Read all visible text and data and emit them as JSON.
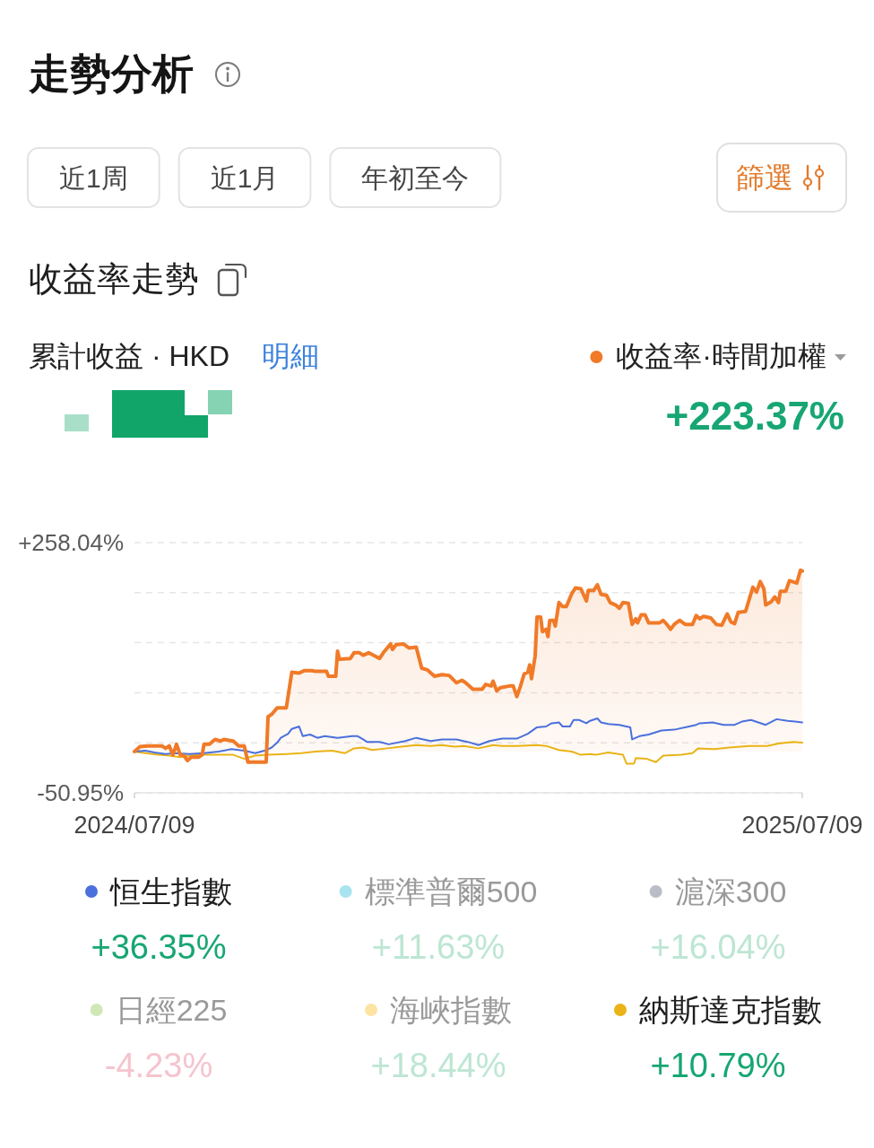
{
  "chart_data": {
    "type": "line",
    "title": "走勢分析",
    "subtitle": "收益率走勢",
    "annotations": [
      "近1周",
      "近1月",
      "年初至今",
      "篩選",
      "累計收益 · HKD",
      "明細",
      "+223.37%",
      "+36.35%",
      "+11.63%",
      "+16.04%",
      "-4.23%",
      "+18.44%",
      "+10.79%"
    ],
    "xlim": [
      "2024-07-09",
      "2025-07-09"
    ],
    "xticks": [
      {
        "value": "2024-07-09",
        "label": "2024/07/09"
      },
      {
        "value": "2025-07-09",
        "label": "2025/07/09"
      }
    ],
    "ylim": [
      -50.95,
      258.04
    ],
    "yticks": [
      {
        "value": 258.04,
        "label": "+258.04%"
      },
      {
        "value": 196.24,
        "label": null
      },
      {
        "value": 134.44,
        "label": null
      },
      {
        "value": 72.65,
        "label": null
      },
      {
        "value": 10.85,
        "label": null
      },
      {
        "value": -50.95,
        "label": "-50.95%"
      }
    ],
    "grid": "y",
    "legend": "bottom",
    "series": [
      {
        "name": "收益率·時間加權",
        "type": "area",
        "color": "#f07a28",
        "x": [
          "2024-07-09",
          "2024-07-12",
          "2024-07-16",
          "2024-07-20",
          "2024-07-24",
          "2024-07-26",
          "2024-07-28",
          "2024-07-30",
          "2024-08-01",
          "2024-08-03",
          "2024-08-05",
          "2024-08-07",
          "2024-08-09",
          "2024-08-13",
          "2024-08-15",
          "2024-08-16",
          "2024-08-19",
          "2024-08-22",
          "2024-08-25",
          "2024-08-27",
          "2024-09-01",
          "2024-09-04",
          "2024-09-07",
          "2024-09-09",
          "2024-09-19",
          "2024-09-20",
          "2024-09-22",
          "2024-09-25",
          "2024-09-30",
          "2024-10-03",
          "2024-10-07",
          "2024-10-10",
          "2024-10-14",
          "2024-10-16",
          "2024-10-22",
          "2024-10-23",
          "2024-10-27",
          "2024-10-28",
          "2024-10-29",
          "2024-11-04",
          "2024-11-06",
          "2024-11-09",
          "2024-11-11",
          "2024-11-14",
          "2024-11-20",
          "2024-11-22",
          "2024-11-26",
          "2024-11-27",
          "2024-11-29",
          "2024-12-03",
          "2024-12-06",
          "2024-12-10",
          "2024-12-13",
          "2024-12-16",
          "2024-12-20",
          "2024-12-24",
          "2024-12-28",
          "2025-01-01",
          "2025-01-04",
          "2025-01-06",
          "2025-01-10",
          "2025-01-15",
          "2025-01-17",
          "2025-01-20",
          "2025-01-21",
          "2025-01-23",
          "2025-01-25",
          "2025-01-30",
          "2025-02-01",
          "2025-02-03",
          "2025-02-05",
          "2025-02-07",
          "2025-02-09",
          "2025-02-10",
          "2025-02-11",
          "2025-02-13",
          "2025-02-14",
          "2025-02-16",
          "2025-02-17",
          "2025-02-19",
          "2025-02-20",
          "2025-02-21",
          "2025-02-23",
          "2025-02-24",
          "2025-02-26",
          "2025-02-28",
          "2025-03-02",
          "2025-03-05",
          "2025-03-07",
          "2025-03-10",
          "2025-03-13",
          "2025-03-14",
          "2025-03-17",
          "2025-03-19",
          "2025-03-21",
          "2025-03-24",
          "2025-03-26",
          "2025-03-29",
          "2025-03-31",
          "2025-04-02",
          "2025-04-05",
          "2025-04-07",
          "2025-04-09",
          "2025-04-10",
          "2025-04-12",
          "2025-04-14",
          "2025-04-16",
          "2025-04-22",
          "2025-04-24",
          "2025-04-26",
          "2025-04-28",
          "2025-04-30",
          "2025-05-03",
          "2025-05-06",
          "2025-05-10",
          "2025-05-12",
          "2025-05-14",
          "2025-05-16",
          "2025-05-20",
          "2025-05-23",
          "2025-05-26",
          "2025-05-29",
          "2025-05-31",
          "2025-06-02",
          "2025-06-04",
          "2025-06-08",
          "2025-06-12",
          "2025-06-14",
          "2025-06-16",
          "2025-06-18",
          "2025-06-19",
          "2025-06-22",
          "2025-06-24",
          "2025-06-26",
          "2025-06-27",
          "2025-06-30",
          "2025-07-02",
          "2025-07-06",
          "2025-07-08",
          "2025-07-09"
        ],
        "values": [
          0,
          6,
          7,
          7,
          7,
          4,
          7,
          -4,
          9,
          -4,
          -5,
          -11,
          -7,
          -7,
          -4,
          9,
          9,
          15,
          13,
          15,
          13,
          7,
          7,
          -13,
          -13,
          43,
          46,
          54,
          54,
          98,
          97,
          100,
          100,
          99,
          99,
          93,
          93,
          124,
          114,
          115,
          122,
          122,
          119,
          122,
          115,
          122,
          133,
          126,
          132,
          133,
          128,
          129,
          103,
          101,
          93,
          95,
          94,
          85,
          88,
          85,
          77,
          77,
          83,
          81,
          87,
          75,
          79,
          81,
          81,
          68,
          81,
          96,
          98,
          107,
          90,
          118,
          166,
          166,
          148,
          151,
          142,
          162,
          162,
          155,
          184,
          179,
          179,
          195,
          202,
          201,
          186,
          199,
          199,
          206,
          194,
          193,
          184,
          181,
          177,
          184,
          183,
          157,
          164,
          159,
          169,
          169,
          159,
          159,
          162,
          157,
          151,
          157,
          162,
          157,
          157,
          168,
          164,
          167,
          165,
          157,
          156,
          170,
          160,
          158,
          172,
          173,
          203,
          197,
          210,
          201,
          181,
          185,
          191,
          184,
          198,
          198,
          211,
          208,
          224,
          223
        ]
      },
      {
        "name": "恒生指數",
        "color": "#4b70dd",
        "x": [
          "2024-07-09",
          "2024-07-15",
          "2024-07-20",
          "2024-07-26",
          "2024-07-31",
          "2024-08-08",
          "2024-08-16",
          "2024-08-24",
          "2024-08-31",
          "2024-09-07",
          "2024-09-13",
          "2024-09-18",
          "2024-09-22",
          "2024-09-25",
          "2024-09-27",
          "2024-10-01",
          "2024-10-03",
          "2024-10-07",
          "2024-10-09",
          "2024-10-13",
          "2024-10-17",
          "2024-10-21",
          "2024-10-28",
          "2024-11-05",
          "2024-11-08",
          "2024-11-11",
          "2024-11-13",
          "2024-11-20",
          "2024-11-25",
          "2024-12-04",
          "2024-12-10",
          "2024-12-18",
          "2024-12-24",
          "2025-01-01",
          "2025-01-07",
          "2025-01-13",
          "2025-01-19",
          "2025-01-26",
          "2025-02-03",
          "2025-02-09",
          "2025-02-14",
          "2025-02-19",
          "2025-02-22",
          "2025-02-26",
          "2025-02-28",
          "2025-03-04",
          "2025-03-06",
          "2025-03-09",
          "2025-03-13",
          "2025-03-15",
          "2025-03-19",
          "2025-03-21",
          "2025-03-25",
          "2025-03-31",
          "2025-04-06",
          "2025-04-07",
          "2025-04-11",
          "2025-04-16",
          "2025-04-23",
          "2025-04-30",
          "2025-05-06",
          "2025-05-12",
          "2025-05-14",
          "2025-05-21",
          "2025-05-27",
          "2025-06-02",
          "2025-06-06",
          "2025-06-11",
          "2025-06-15",
          "2025-06-19",
          "2025-06-25",
          "2025-07-01",
          "2025-07-05",
          "2025-07-09"
        ],
        "values": [
          0,
          1,
          -1,
          -3,
          -2,
          -3,
          -2,
          0,
          3,
          1,
          -2,
          1,
          5,
          11,
          17,
          22,
          28,
          31,
          19,
          21,
          17,
          19,
          17,
          19,
          19,
          15,
          12,
          12,
          9,
          13,
          17,
          13,
          15,
          15,
          12,
          8,
          13,
          16,
          16,
          22,
          30,
          31,
          35,
          36,
          31,
          31,
          39,
          39,
          35,
          38,
          41,
          36,
          34,
          33,
          30,
          15,
          19,
          21,
          26,
          27,
          30,
          33,
          35,
          36,
          33,
          33,
          37,
          39,
          36,
          33,
          40,
          38,
          37,
          36
        ]
      },
      {
        "name": "標準普爾500",
        "color": "#a8e4ef"
      },
      {
        "name": "滬深300",
        "color": "#babdc6"
      },
      {
        "name": "日經225",
        "color": "#d0e8b6"
      },
      {
        "name": "海峽指數",
        "color": "#fde4a3"
      },
      {
        "name": "納斯達克指數",
        "color": "#eab316",
        "x": [
          "2024-07-09",
          "2024-07-15",
          "2024-07-22",
          "2024-07-28",
          "2024-08-03",
          "2024-08-08",
          "2024-08-16",
          "2024-08-24",
          "2024-09-01",
          "2024-09-07",
          "2024-09-13",
          "2024-09-20",
          "2024-09-30",
          "2024-10-08",
          "2024-10-16",
          "2024-10-25",
          "2024-11-01",
          "2024-11-06",
          "2024-11-11",
          "2024-11-16",
          "2024-11-24",
          "2024-12-02",
          "2024-12-10",
          "2024-12-18",
          "2024-12-24",
          "2024-12-31",
          "2025-01-05",
          "2025-01-13",
          "2025-01-21",
          "2025-01-26",
          "2025-02-03",
          "2025-02-14",
          "2025-02-19",
          "2025-02-26",
          "2025-03-05",
          "2025-03-10",
          "2025-03-15",
          "2025-03-18",
          "2025-03-25",
          "2025-04-02",
          "2025-04-04",
          "2025-04-08",
          "2025-04-09",
          "2025-04-15",
          "2025-04-20",
          "2025-04-24",
          "2025-05-04",
          "2025-05-10",
          "2025-05-13",
          "2025-05-22",
          "2025-05-30",
          "2025-06-10",
          "2025-06-20",
          "2025-06-26",
          "2025-07-04",
          "2025-07-09"
        ],
        "values": [
          0,
          -2,
          -4,
          -5,
          -7,
          -5,
          -4,
          -4,
          -4,
          -9,
          -5,
          -4,
          -3,
          -2,
          0,
          1,
          -2,
          4,
          5,
          2,
          4,
          6,
          8,
          7,
          8,
          6,
          7,
          4,
          8,
          7,
          7,
          8,
          7,
          2,
          0,
          -4,
          -3,
          -4,
          -1,
          -4,
          -15,
          -15,
          -8,
          -9,
          -13,
          -5,
          -4,
          -2,
          4,
          3,
          5,
          7,
          7,
          10,
          12,
          11
        ]
      }
    ]
  }
}
